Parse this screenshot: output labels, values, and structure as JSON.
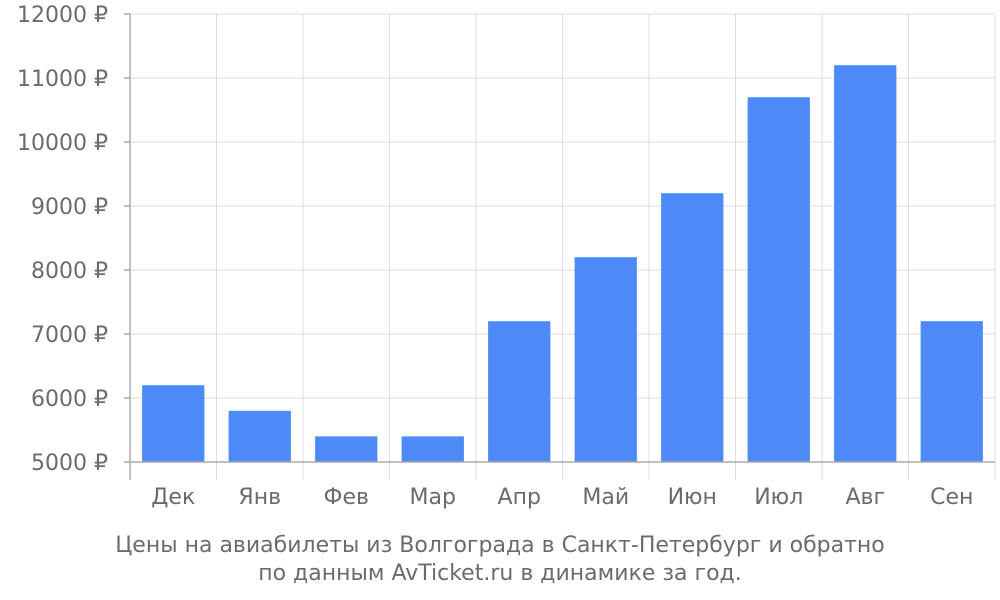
{
  "chart_data": {
    "type": "bar",
    "categories": [
      "Дек",
      "Янв",
      "Фев",
      "Мар",
      "Апр",
      "Май",
      "Июн",
      "Июл",
      "Авг",
      "Сен"
    ],
    "values": [
      6200,
      5800,
      5400,
      5400,
      7200,
      8200,
      9200,
      10700,
      11200,
      7200
    ],
    "ylim": [
      5000,
      12000
    ],
    "yticks": [
      5000,
      6000,
      7000,
      8000,
      9000,
      10000,
      11000,
      12000
    ],
    "ytick_suffix": " ₽",
    "grid": true,
    "bar_color": "#4d8af7",
    "grid_color": "#dddddd",
    "axis_color": "#aaaaaa",
    "text_color": "#6b6b6b"
  },
  "caption": {
    "line1": "Цены на авиабилеты из Волгограда в Санкт-Петербург и обратно",
    "line2": "по данным AvTicket.ru в динамике за год."
  }
}
